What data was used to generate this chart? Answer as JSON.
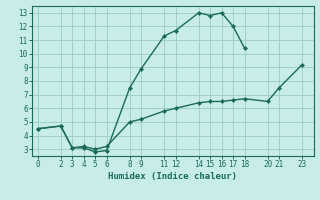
{
  "xlabel": "Humidex (Indice chaleur)",
  "bg_color": "#c8ece8",
  "grid_color": "#a0d0cc",
  "line_color": "#1a6b5a",
  "xlim": [
    -0.5,
    24.0
  ],
  "ylim": [
    2.5,
    13.5
  ],
  "xticks": [
    0,
    2,
    3,
    4,
    5,
    6,
    8,
    9,
    11,
    12,
    14,
    15,
    16,
    17,
    18,
    20,
    21,
    23
  ],
  "yticks": [
    3,
    4,
    5,
    6,
    7,
    8,
    9,
    10,
    11,
    12,
    13
  ],
  "line1_x": [
    0,
    2,
    3,
    4,
    5,
    6,
    8,
    9,
    11,
    12,
    14,
    15,
    16,
    17,
    18
  ],
  "line1_y": [
    4.5,
    4.7,
    3.1,
    3.1,
    2.8,
    2.9,
    7.5,
    8.9,
    11.3,
    11.7,
    13.0,
    12.8,
    13.0,
    12.0,
    10.4
  ],
  "line2_x": [
    0,
    2,
    3,
    4,
    5,
    6,
    8,
    9,
    11,
    12,
    14,
    15,
    16,
    17,
    18,
    20,
    21,
    23
  ],
  "line2_y": [
    4.5,
    4.7,
    3.1,
    3.2,
    3.0,
    3.2,
    5.0,
    5.2,
    5.8,
    6.0,
    6.4,
    6.5,
    6.5,
    6.6,
    6.7,
    6.5,
    7.5,
    9.2
  ]
}
